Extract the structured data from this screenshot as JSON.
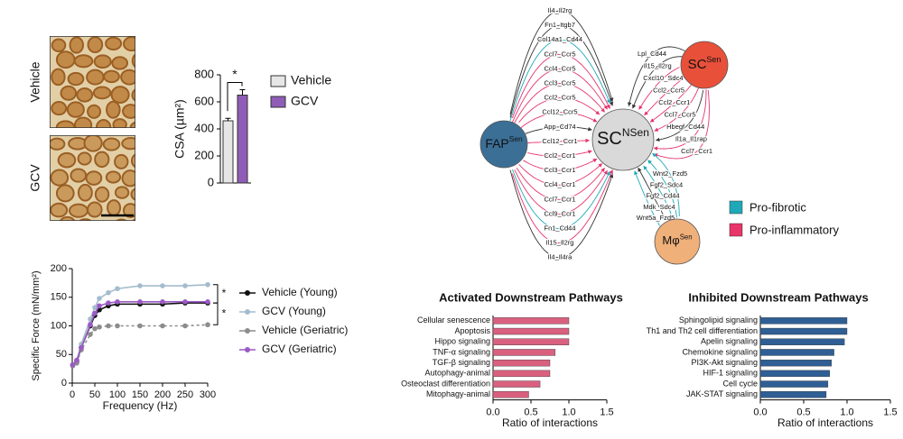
{
  "micrograph": {
    "labels": [
      "Vehicle",
      "GCV"
    ]
  },
  "chart_data": [
    {
      "type": "bar",
      "ylabel": "CSA (µm²)",
      "categories": [
        "Vehicle",
        "GCV"
      ],
      "values": [
        460,
        650
      ],
      "errors": [
        18,
        40
      ],
      "colors": [
        "#e6e6e6",
        "#8f5db7"
      ],
      "ylim": [
        0,
        800
      ],
      "yticks": [
        0,
        200,
        400,
        600,
        800
      ],
      "annotation": "*",
      "legend": "right"
    },
    {
      "type": "line",
      "xlabel": "Frequency (Hz)",
      "ylabel": "Specific Force (mN/mm²)",
      "x": [
        1,
        10,
        20,
        40,
        50,
        60,
        80,
        100,
        150,
        200,
        250,
        300
      ],
      "series": [
        {
          "name": "Vehicle (Young)",
          "color": "#111111",
          "values": [
            32,
            38,
            62,
            100,
            118,
            128,
            135,
            138,
            138,
            138,
            140,
            140
          ]
        },
        {
          "name": "GCV (Young)",
          "color": "#a3bccd",
          "values": [
            32,
            40,
            68,
            112,
            132,
            148,
            158,
            165,
            170,
            170,
            170,
            172
          ]
        },
        {
          "name": "Vehicle (Geriatric)",
          "color": "#8c8c8c",
          "dashed": true,
          "values": [
            30,
            35,
            58,
            85,
            95,
            98,
            100,
            100,
            100,
            100,
            100,
            102
          ]
        },
        {
          "name": "GCV (Geriatric)",
          "color": "#9b59c6",
          "values": [
            32,
            40,
            62,
            102,
            122,
            135,
            140,
            142,
            142,
            142,
            142,
            142
          ]
        }
      ],
      "xlim": [
        0,
        300
      ],
      "xticks": [
        0,
        50,
        100,
        150,
        200,
        250,
        300
      ],
      "ylim": [
        0,
        200
      ],
      "yticks": [
        0,
        50,
        100,
        150,
        200
      ],
      "annotations": [
        "*",
        "*"
      ],
      "legend": "right"
    },
    {
      "type": "hbar",
      "title": "Activated Downstream Pathways",
      "xlabel": "Ratio of interactions",
      "categories": [
        "Cellular senescence",
        "Apoptosis",
        "Hippo signaling",
        "TNF-α signaling",
        "TGF-β signaling",
        "Autophagy-animal",
        "Osteoclast differentiation",
        "Mitophagy-animal"
      ],
      "values": [
        1.0,
        1.0,
        1.0,
        0.82,
        0.75,
        0.75,
        0.62,
        0.47
      ],
      "color": "#d9607f",
      "xlim": [
        0,
        1.5
      ],
      "xticks": [
        {
          "value": 0,
          "label": "0.0"
        },
        0.5,
        {
          "value": 1,
          "label": "1.0"
        },
        1.5
      ]
    },
    {
      "type": "hbar",
      "title": "Inhibited Downstream Pathways",
      "xlabel": "Ratio of interactions",
      "categories": [
        "Sphingolipid signaling",
        "Th1 and Th2 cell differentiation",
        "Apelin signaling",
        "Chemokine signaling",
        "PI3K-Akt signaling",
        "HIF-1 signaling",
        "Cell cycle",
        "JAK-STAT signaling"
      ],
      "values": [
        1.0,
        1.0,
        0.97,
        0.85,
        0.82,
        0.8,
        0.78,
        0.76
      ],
      "color": "#2f5f94",
      "xlim": [
        0,
        1.5
      ],
      "xticks": [
        {
          "value": 0,
          "label": "0.0"
        },
        0.5,
        {
          "value": 1,
          "label": "1.0"
        },
        1.5
      ]
    }
  ],
  "diagram": {
    "nodes": [
      {
        "label": "FAP",
        "sup": "Sen",
        "color": "#3b6f96",
        "edges": [
          {
            "label": "Il4_Il2rg",
            "color": "#333333"
          },
          {
            "label": "Fn1_Itgb7",
            "color": "#333333"
          },
          {
            "label": "Col14a1_Cd44",
            "color": "#1fa9b8"
          },
          {
            "label": "Ccl7_Ccr5",
            "color": "#e8336b"
          },
          {
            "label": "Ccl4_Ccr5",
            "color": "#e8336b"
          },
          {
            "label": "Ccl3_Ccr5",
            "color": "#e8336b"
          },
          {
            "label": "Ccl2_Ccr5",
            "color": "#e8336b"
          },
          {
            "label": "Ccl12_Ccr5",
            "color": "#e8336b"
          },
          {
            "label": "App_Cd74",
            "color": "#333333"
          },
          {
            "label": "Ccl12_Ccr1",
            "color": "#e8336b"
          },
          {
            "label": "Ccl2_Ccr1",
            "color": "#e8336b"
          },
          {
            "label": "Ccl3_Ccr1",
            "color": "#e8336b"
          },
          {
            "label": "Ccl4_Ccr1",
            "color": "#e8336b"
          },
          {
            "label": "Ccl7_Ccr1",
            "color": "#e8336b"
          },
          {
            "label": "Ccl9_Ccr1",
            "color": "#e8336b"
          },
          {
            "label": "Fn1_Cd44",
            "color": "#1fa9b8"
          },
          {
            "label": "Il15_Il2rg",
            "color": "#e8336b"
          },
          {
            "label": "Il4_Il4ra",
            "color": "#333333"
          }
        ]
      },
      {
        "label": "SC",
        "sup": "NSen",
        "color": "#d9d9d9"
      },
      {
        "label": "SC",
        "sup": "Sen",
        "color": "#e8503a",
        "edges": [
          {
            "label": "Lpl_Cd44",
            "color": "#333333"
          },
          {
            "label": "Il15_Il2rg",
            "color": "#333333"
          },
          {
            "label": "Cxcl10_Sdc4",
            "color": "#e8336b"
          },
          {
            "label": "Ccl2_Ccr5",
            "color": "#e8336b"
          },
          {
            "label": "Ccl2_Ccr1",
            "color": "#e8336b"
          },
          {
            "label": "Ccl7_Ccr5",
            "color": "#e8336b"
          },
          {
            "label": "Hbegf_Cd44",
            "color": "#333333"
          },
          {
            "label": "Il1a_Il1rap",
            "color": "#e8336b"
          },
          {
            "label": "Ccl7_Ccr1",
            "color": "#e8336b"
          }
        ]
      },
      {
        "label": "Mφ",
        "sup": "Sen",
        "color": "#f0b07a",
        "edges": [
          {
            "label": "Wnt2_Fzd5",
            "color": "#1fa9b8"
          },
          {
            "label": "Fgf2_Sdc4",
            "color": "#1fa9b8"
          },
          {
            "label": "Fgf2_Cd44",
            "color": "#1fa9b8"
          },
          {
            "label": "Mdk_Sdc4",
            "color": "#333333"
          },
          {
            "label": "Wnt5a_Fzd5",
            "color": "#1fa9b8"
          }
        ]
      }
    ],
    "legend": [
      {
        "label": "Pro-fibrotic",
        "color": "#1fa9b8"
      },
      {
        "label": "Pro-inflammatory",
        "color": "#e8336b"
      }
    ]
  }
}
